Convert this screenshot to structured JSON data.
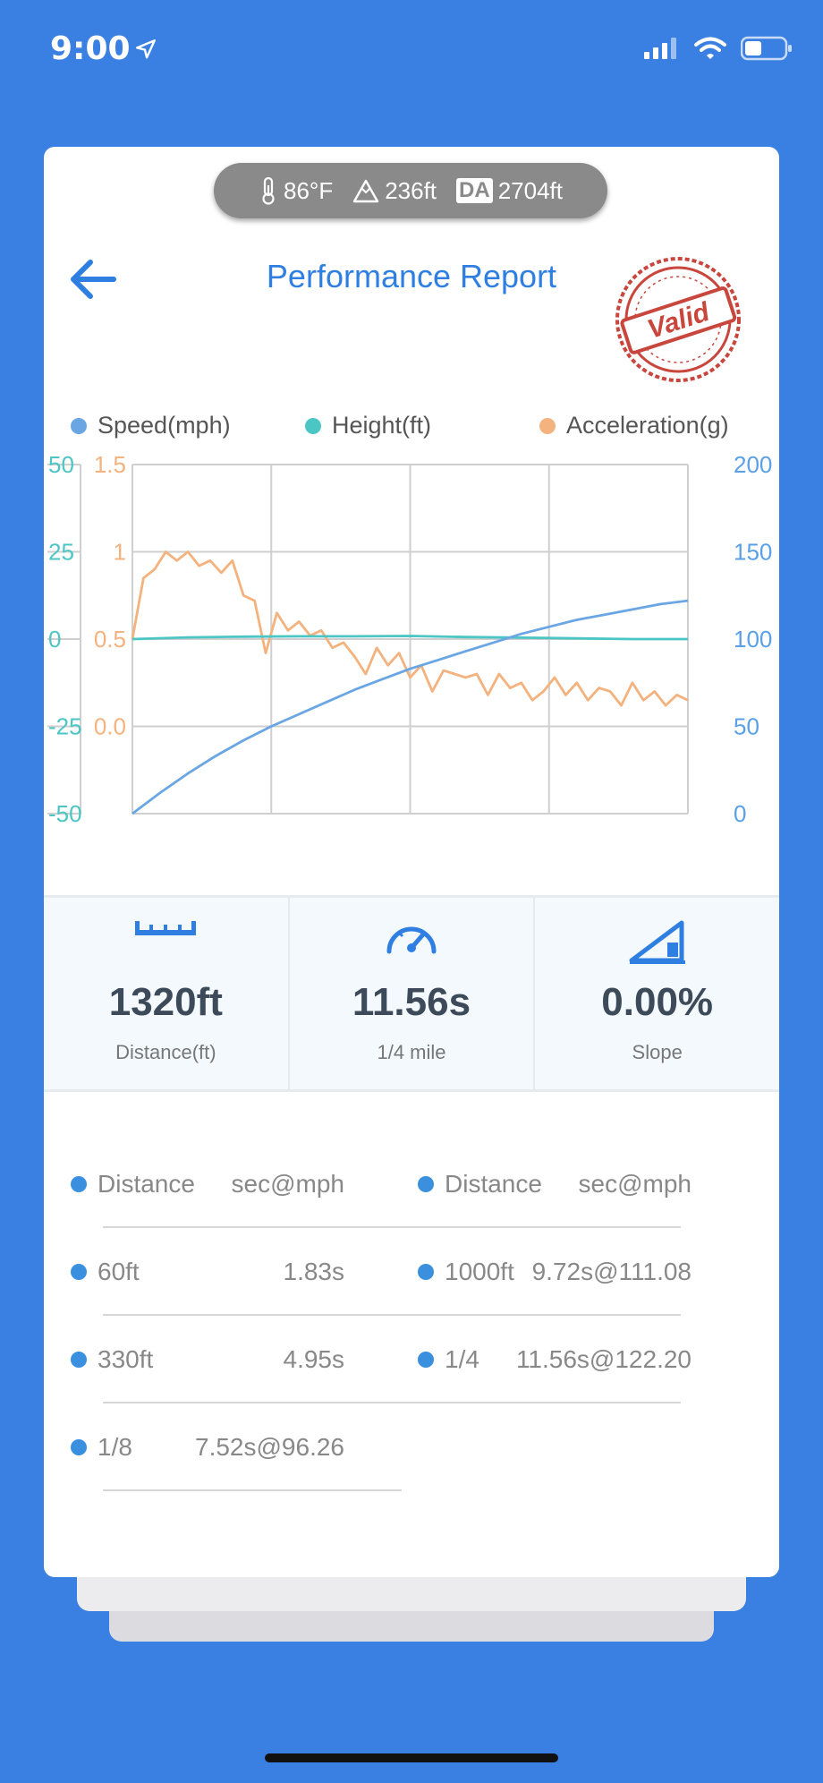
{
  "status_bar": {
    "time": "9:00"
  },
  "env": {
    "temperature": "86°F",
    "altitude": "236ft",
    "da_label": "DA",
    "density_altitude": "2704ft"
  },
  "header": {
    "title": "Performance Report",
    "stamp_text": "Valid"
  },
  "legend": [
    {
      "label": "Speed(mph)",
      "color": "#6aa6e4"
    },
    {
      "label": "Height(ft)",
      "color": "#4cc6c4"
    },
    {
      "label": "Acceleration(g)",
      "color": "#f3b27e"
    }
  ],
  "chart_data": {
    "type": "line",
    "axes": {
      "height_ticks": [
        "50",
        "25",
        "0",
        "-25",
        "-50"
      ],
      "accel_ticks": [
        "1.5",
        "1",
        "0.5",
        "0.0"
      ],
      "speed_ticks": [
        "200",
        "150",
        "100",
        "50",
        "0"
      ],
      "height_range": [
        -50,
        50
      ],
      "accel_range": [
        -0.5,
        1.5
      ],
      "speed_range": [
        0,
        200
      ]
    },
    "grid": true,
    "series": [
      {
        "name": "Speed(mph)",
        "color": "#6aa6e4",
        "x": [
          0,
          0.05,
          0.1,
          0.15,
          0.2,
          0.25,
          0.3,
          0.35,
          0.4,
          0.45,
          0.5,
          0.55,
          0.6,
          0.65,
          0.7,
          0.75,
          0.8,
          0.85,
          0.9,
          0.95,
          1.0
        ],
        "values": [
          0,
          12,
          23,
          33,
          42,
          50,
          57,
          64,
          71,
          77,
          83,
          88,
          93,
          98,
          103,
          107,
          111,
          114,
          117,
          120,
          122
        ]
      },
      {
        "name": "Height(ft)",
        "color": "#4cc6c4",
        "x": [
          0,
          0.1,
          0.2,
          0.3,
          0.4,
          0.5,
          0.6,
          0.7,
          0.8,
          0.9,
          1.0
        ],
        "values": [
          0,
          0.5,
          0.7,
          0.8,
          0.8,
          0.9,
          0.6,
          0.4,
          0.2,
          0.0,
          0.0
        ]
      },
      {
        "name": "Acceleration(g)",
        "color": "#f3b27e",
        "x": [
          0,
          0.02,
          0.04,
          0.06,
          0.08,
          0.1,
          0.12,
          0.14,
          0.16,
          0.18,
          0.2,
          0.22,
          0.24,
          0.26,
          0.28,
          0.3,
          0.32,
          0.34,
          0.36,
          0.38,
          0.4,
          0.42,
          0.44,
          0.46,
          0.48,
          0.5,
          0.52,
          0.54,
          0.56,
          0.58,
          0.6,
          0.62,
          0.64,
          0.66,
          0.68,
          0.7,
          0.72,
          0.74,
          0.76,
          0.78,
          0.8,
          0.82,
          0.84,
          0.86,
          0.88,
          0.9,
          0.92,
          0.94,
          0.96,
          0.98,
          1.0
        ],
        "values": [
          0.5,
          0.85,
          0.9,
          1.0,
          0.95,
          1.0,
          0.92,
          0.95,
          0.88,
          0.95,
          0.75,
          0.72,
          0.42,
          0.65,
          0.55,
          0.6,
          0.52,
          0.55,
          0.45,
          0.48,
          0.4,
          0.3,
          0.45,
          0.35,
          0.42,
          0.28,
          0.35,
          0.2,
          0.32,
          0.3,
          0.28,
          0.3,
          0.18,
          0.3,
          0.22,
          0.25,
          0.15,
          0.2,
          0.28,
          0.18,
          0.25,
          0.15,
          0.22,
          0.2,
          0.12,
          0.25,
          0.15,
          0.2,
          0.12,
          0.18,
          0.15
        ]
      }
    ]
  },
  "stats": [
    {
      "icon": "ruler-icon",
      "value": "1320ft",
      "label": "Distance(ft)"
    },
    {
      "icon": "speedometer-icon",
      "value": "11.56s",
      "label": "1/4 mile"
    },
    {
      "icon": "slope-icon",
      "value": "0.00%",
      "label": "Slope"
    }
  ],
  "splits": {
    "header": {
      "col1": "Distance",
      "col2": "sec@mph"
    },
    "left": [
      {
        "name": "60ft",
        "value": "1.83s"
      },
      {
        "name": "330ft",
        "value": "4.95s"
      },
      {
        "name": "1/8",
        "value": "7.52s@96.26"
      }
    ],
    "right": [
      {
        "name": "1000ft",
        "value": "9.72s@111.08"
      },
      {
        "name": "1/4",
        "value": "11.56s@122.20"
      }
    ]
  }
}
